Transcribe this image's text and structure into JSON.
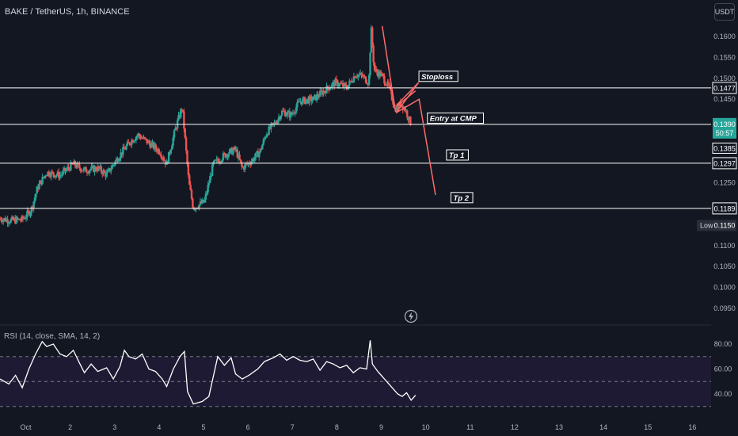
{
  "header": {
    "symbol_title": "BAKE / TetherUS, 1h, BINANCE",
    "currency": "USDT"
  },
  "colors": {
    "background": "#131722",
    "up": "#26a69a",
    "down": "#ef5350",
    "level_line": "#ffffff",
    "projection": "#ff6b6b",
    "rsi_line": "#ffffff",
    "rsi_band": "#1e1a33"
  },
  "icons": {
    "replay": "lightning-bolt-icon"
  },
  "chart_data": [
    {
      "type": "candlestick",
      "name": "price",
      "x_ticks": [
        "Oct",
        "2",
        "3",
        "4",
        "5",
        "6",
        "7",
        "8",
        "9",
        "10",
        "11",
        "12",
        "13",
        "14",
        "15",
        "16"
      ],
      "y_ticks": [
        "0.1600",
        "0.1550",
        "0.1500",
        "0.1450",
        "0.1250",
        "0.1100",
        "0.1050",
        "0.1000",
        "0.0950"
      ],
      "ylim": [
        0.091,
        0.165
      ],
      "xlim": [
        0.2,
        16.2
      ],
      "levels": [
        {
          "price": 0.1477,
          "label": "0.1477"
        },
        {
          "price": 0.139,
          "label": "0.1390"
        },
        {
          "price": 0.1297,
          "label": "0.1297"
        },
        {
          "price": 0.1189,
          "label": "0.1189"
        }
      ],
      "price_tags": [
        {
          "price": 0.139,
          "label": "0.1390",
          "countdown": "50:57",
          "style": "current"
        },
        {
          "price": 0.1368,
          "label": "0.1385",
          "style": "plain"
        },
        {
          "price": 0.115,
          "label": "0.1150",
          "prefix": "Low",
          "style": "low"
        }
      ],
      "annotations": [
        {
          "text": "Stoploss",
          "x": 9.68,
          "price": 0.15
        },
        {
          "text": "Entry at CMP",
          "x": 9.87,
          "price": 0.14
        },
        {
          "text": "Tp 1",
          "x": 10.3,
          "price": 0.1312
        },
        {
          "text": "Tp 2",
          "x": 10.4,
          "price": 0.121
        }
      ],
      "projection_path": [
        {
          "x": 9.12,
          "price": 0.1435
        },
        {
          "x": 9.62,
          "price": 0.149
        },
        {
          "x": 9.12,
          "price": 0.1418
        },
        {
          "x": 9.63,
          "price": 0.145
        },
        {
          "x": 10.0,
          "price": 0.1221
        }
      ],
      "projection_segments": [
        [
          {
            "x": 8.8,
            "price": 0.1625
          },
          {
            "x": 9.1,
            "price": 0.142
          }
        ],
        [
          {
            "x": 9.15,
            "price": 0.1435
          },
          {
            "x": 9.55,
            "price": 0.147
          }
        ]
      ],
      "path_points": [
        [
          0.2,
          0.1165
        ],
        [
          0.45,
          0.116
        ],
        [
          0.7,
          0.1162
        ],
        [
          0.9,
          0.1185
        ],
        [
          1.05,
          0.124
        ],
        [
          1.25,
          0.1275
        ],
        [
          1.55,
          0.1268
        ],
        [
          1.85,
          0.1295
        ],
        [
          2.1,
          0.128
        ],
        [
          2.4,
          0.1285
        ],
        [
          2.6,
          0.127
        ],
        [
          2.85,
          0.131
        ],
        [
          3.1,
          0.1345
        ],
        [
          3.3,
          0.1365
        ],
        [
          3.55,
          0.1345
        ],
        [
          3.8,
          0.1325
        ],
        [
          3.95,
          0.1295
        ],
        [
          4.15,
          0.138
        ],
        [
          4.3,
          0.1432
        ],
        [
          4.45,
          0.125
        ],
        [
          4.55,
          0.119
        ],
        [
          4.8,
          0.1205
        ],
        [
          5.0,
          0.1295
        ],
        [
          5.3,
          0.132
        ],
        [
          5.5,
          0.133
        ],
        [
          5.65,
          0.1285
        ],
        [
          5.85,
          0.1302
        ],
        [
          6.05,
          0.1325
        ],
        [
          6.2,
          0.137
        ],
        [
          6.4,
          0.1395
        ],
        [
          6.55,
          0.142
        ],
        [
          6.75,
          0.1412
        ],
        [
          6.95,
          0.1445
        ],
        [
          7.25,
          0.145
        ],
        [
          7.55,
          0.1475
        ],
        [
          7.75,
          0.149
        ],
        [
          8.0,
          0.1478
        ],
        [
          8.2,
          0.151
        ],
        [
          8.35,
          0.1505
        ],
        [
          8.5,
          0.149
        ],
        [
          8.55,
          0.162
        ],
        [
          8.62,
          0.152
        ],
        [
          8.8,
          0.1505
        ],
        [
          8.95,
          0.1478
        ],
        [
          9.1,
          0.1425
        ],
        [
          9.22,
          0.144
        ],
        [
          9.32,
          0.1425
        ],
        [
          9.45,
          0.139
        ]
      ]
    },
    {
      "type": "line",
      "name": "rsi",
      "title": "RSI (14, close, SMA, 14, 2)",
      "y_ticks": [
        "80.00",
        "60.00",
        "40.00"
      ],
      "ylim": [
        25,
        88
      ],
      "bands": [
        70,
        50,
        30
      ],
      "points": [
        [
          0.2,
          52
        ],
        [
          0.4,
          48
        ],
        [
          0.55,
          55
        ],
        [
          0.7,
          45
        ],
        [
          0.85,
          60
        ],
        [
          1.0,
          72
        ],
        [
          1.15,
          82
        ],
        [
          1.25,
          78
        ],
        [
          1.4,
          80
        ],
        [
          1.55,
          72
        ],
        [
          1.7,
          70
        ],
        [
          1.85,
          75
        ],
        [
          2.0,
          64
        ],
        [
          2.1,
          57
        ],
        [
          2.25,
          64
        ],
        [
          2.4,
          58
        ],
        [
          2.6,
          61
        ],
        [
          2.75,
          52
        ],
        [
          2.9,
          62
        ],
        [
          3.0,
          75
        ],
        [
          3.1,
          70
        ],
        [
          3.25,
          68
        ],
        [
          3.4,
          72
        ],
        [
          3.55,
          60
        ],
        [
          3.7,
          58
        ],
        [
          3.85,
          52
        ],
        [
          3.95,
          46
        ],
        [
          4.1,
          60
        ],
        [
          4.25,
          70
        ],
        [
          4.35,
          74
        ],
        [
          4.42,
          42
        ],
        [
          4.55,
          32
        ],
        [
          4.75,
          34
        ],
        [
          4.9,
          38
        ],
        [
          5.0,
          54
        ],
        [
          5.1,
          70
        ],
        [
          5.25,
          63
        ],
        [
          5.4,
          69
        ],
        [
          5.5,
          56
        ],
        [
          5.65,
          52
        ],
        [
          5.8,
          55
        ],
        [
          6.0,
          60
        ],
        [
          6.15,
          66
        ],
        [
          6.35,
          69
        ],
        [
          6.5,
          72
        ],
        [
          6.65,
          67
        ],
        [
          6.8,
          70
        ],
        [
          6.95,
          67
        ],
        [
          7.1,
          66
        ],
        [
          7.25,
          68
        ],
        [
          7.4,
          59
        ],
        [
          7.55,
          66
        ],
        [
          7.7,
          64
        ],
        [
          7.85,
          61
        ],
        [
          8.0,
          63
        ],
        [
          8.15,
          57
        ],
        [
          8.3,
          61
        ],
        [
          8.45,
          60
        ],
        [
          8.53,
          83
        ],
        [
          8.58,
          64
        ],
        [
          8.7,
          58
        ],
        [
          8.85,
          52
        ],
        [
          9.0,
          46
        ],
        [
          9.15,
          40
        ],
        [
          9.25,
          38
        ],
        [
          9.35,
          41
        ],
        [
          9.45,
          35
        ],
        [
          9.55,
          39
        ]
      ]
    }
  ]
}
